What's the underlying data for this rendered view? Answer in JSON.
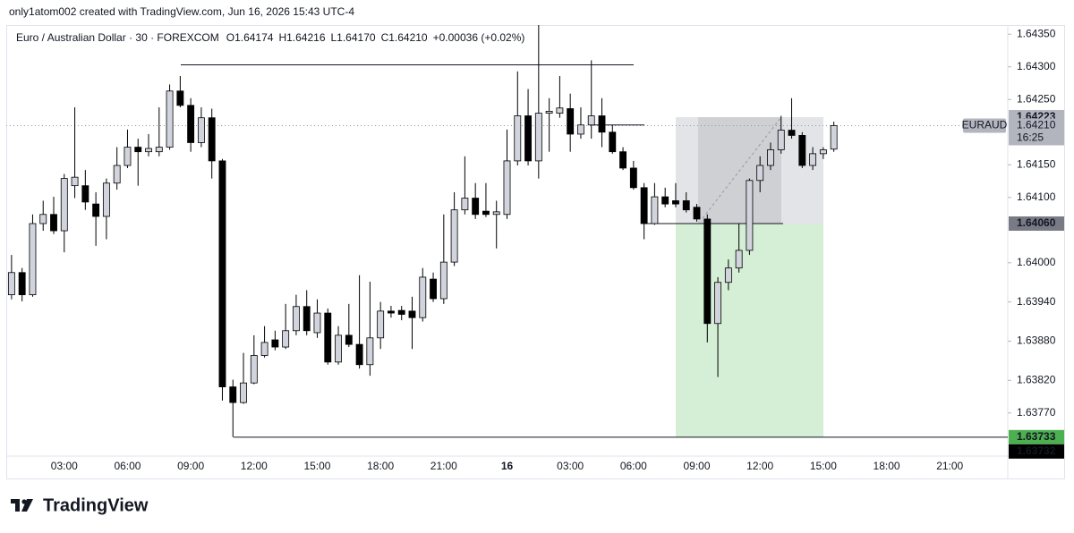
{
  "attribution": "only1atom002 created with TradingView.com, Jun 16, 2026 15:43 UTC-4",
  "brand": "TradingView",
  "chart_data": {
    "type": "candlestick",
    "legend": {
      "symbol": "Euro / Australian Dollar · 30 · FOREXCOM",
      "ohlc": [
        "O1.64174",
        "H1.64216",
        "L1.64170",
        "C1.64210"
      ],
      "change": "+0.00036 (+0.02%)"
    },
    "categories": [
      null,
      null,
      null,
      null,
      null,
      "03:00",
      null,
      null,
      null,
      null,
      null,
      "06:00",
      null,
      null,
      null,
      null,
      null,
      "09:00",
      null,
      null,
      null,
      null,
      null,
      "12:00",
      null,
      null,
      null,
      null,
      null,
      "15:00",
      null,
      null,
      null,
      null,
      null,
      "18:00",
      null,
      null,
      null,
      null,
      null,
      "21:00",
      null,
      null,
      null,
      null,
      null,
      "16",
      null,
      null,
      null,
      null,
      null,
      "03:00",
      null,
      null,
      null,
      null,
      null,
      "06:00",
      null,
      null,
      null,
      null,
      null,
      "09:00",
      null,
      null,
      null,
      null,
      null,
      "12:00",
      null,
      null,
      null,
      null,
      null,
      "15:00",
      null,
      null,
      null,
      null,
      null,
      "18:00",
      null,
      null,
      null,
      null,
      null,
      "21:00",
      null,
      null,
      null,
      null,
      null
    ],
    "open": [
      1.63951,
      1.63985,
      1.63951,
      1.6406,
      1.64074,
      1.64049,
      1.64118,
      1.64118,
      1.6409,
      1.64071,
      1.64122,
      1.64149,
      1.64177,
      1.6417,
      1.6417,
      1.64177,
      1.64263,
      1.64241,
      1.64184,
      1.64222,
      1.64156,
      1.6381,
      1.63786,
      1.63816,
      1.63858,
      1.63882,
      1.63871,
      1.63896,
      1.63933,
      1.63893,
      1.63923,
      1.63848,
      1.63889,
      1.63875,
      1.63844,
      1.63885,
      1.63926,
      1.63927,
      1.63926,
      1.63916,
      1.63975,
      1.63945,
      1.64001,
      1.64081,
      1.64099,
      1.64079,
      1.64074,
      1.64074,
      1.64156,
      1.64225,
      1.64156,
      1.64229,
      1.64229,
      1.64236,
      1.64197,
      1.64211,
      1.64225,
      1.642,
      1.6417,
      1.64145,
      1.64115,
      1.6406,
      1.64101,
      1.64095,
      1.64095,
      1.64085,
      1.64067,
      1.63907,
      1.6397,
      1.63992,
      1.64019,
      1.64126,
      1.64149,
      1.64173,
      1.64203,
      1.64195,
      1.64149,
      1.64167,
      1.64174,
      null,
      null,
      null,
      null,
      null,
      null,
      null,
      null,
      null,
      null,
      null,
      null,
      null,
      null,
      null,
      null
    ],
    "high": [
      1.64012,
      1.63992,
      1.64074,
      1.64095,
      1.64101,
      1.64136,
      1.64238,
      1.64142,
      1.64108,
      1.64129,
      1.64177,
      1.64204,
      1.6419,
      1.64197,
      1.64238,
      1.64273,
      1.64286,
      1.64252,
      1.64238,
      1.64236,
      1.64159,
      1.63821,
      1.63862,
      1.63889,
      1.63903,
      1.63896,
      1.63937,
      1.63951,
      1.63958,
      1.63944,
      1.6393,
      1.63903,
      1.63937,
      1.63981,
      1.63971,
      1.6394,
      1.63934,
      1.63934,
      1.63948,
      1.63992,
      1.63985,
      1.64074,
      1.64108,
      1.64163,
      1.64122,
      1.64122,
      1.64095,
      1.64204,
      1.64293,
      1.64266,
      1.64364,
      1.64252,
      1.64286,
      1.64259,
      1.64238,
      1.6431,
      1.64252,
      1.64211,
      1.64177,
      1.64156,
      1.64122,
      1.64122,
      1.64115,
      1.64122,
      1.64108,
      1.6409,
      1.64074,
      1.63978,
      1.64005,
      1.6406,
      1.64129,
      1.64163,
      1.64184,
      1.64225,
      1.64252,
      1.642,
      1.64177,
      1.64177,
      1.64216,
      null,
      null,
      null,
      null,
      null,
      null,
      null,
      null,
      null,
      null,
      null,
      null,
      null,
      null,
      null,
      null
    ],
    "low": [
      1.63944,
      1.63941,
      1.63948,
      1.64049,
      1.64044,
      1.64016,
      1.64099,
      1.64081,
      1.64026,
      1.64036,
      1.64112,
      1.64145,
      1.64118,
      1.64163,
      1.64163,
      1.64173,
      1.64238,
      1.6417,
      1.64177,
      1.64129,
      1.63789,
      1.63733,
      1.63784,
      1.63814,
      1.63855,
      1.63866,
      1.63868,
      1.63889,
      1.63889,
      1.63885,
      1.63844,
      1.63844,
      1.63871,
      1.63838,
      1.63827,
      1.63868,
      1.63916,
      1.63912,
      1.63868,
      1.6391,
      1.6394,
      1.63937,
      1.63995,
      1.64074,
      1.64067,
      1.6407,
      1.64022,
      1.64067,
      1.64149,
      1.64149,
      1.64129,
      1.6417,
      1.64222,
      1.6417,
      1.6419,
      1.6419,
      1.64177,
      1.64167,
      1.64142,
      1.64112,
      1.64036,
      1.64058,
      1.64085,
      1.64085,
      1.64077,
      1.64063,
      1.63878,
      1.63825,
      1.63958,
      1.63985,
      1.64012,
      1.64108,
      1.64142,
      1.64167,
      1.6419,
      1.64145,
      1.64142,
      1.64159,
      1.6417,
      null,
      null,
      null,
      null,
      null,
      null,
      null,
      null,
      null,
      null,
      null,
      null,
      null,
      null,
      null,
      null
    ],
    "close": [
      1.63985,
      1.63951,
      1.6406,
      1.64074,
      1.64049,
      1.64129,
      1.64131,
      1.64093,
      1.64071,
      1.64122,
      1.64149,
      1.64177,
      1.6417,
      1.64175,
      1.64177,
      1.64263,
      1.64241,
      1.64184,
      1.64222,
      1.64156,
      1.6381,
      1.63786,
      1.63816,
      1.63858,
      1.63878,
      1.63871,
      1.63896,
      1.63933,
      1.63896,
      1.63923,
      1.63848,
      1.63889,
      1.63875,
      1.63844,
      1.63885,
      1.63926,
      1.63923,
      1.63921,
      1.63916,
      1.63978,
      1.63945,
      1.64001,
      1.64081,
      1.64099,
      1.64074,
      1.64074,
      1.64078,
      1.64156,
      1.64225,
      1.64156,
      1.64229,
      1.64232,
      1.64237,
      1.64197,
      1.64211,
      1.64225,
      1.642,
      1.6417,
      1.64145,
      1.64115,
      1.6406,
      1.64101,
      1.6409,
      1.6409,
      1.64081,
      1.64067,
      1.63907,
      1.6397,
      1.63992,
      1.64019,
      1.64126,
      1.64149,
      1.64173,
      1.64203,
      1.64195,
      1.64149,
      1.64167,
      1.64173,
      1.6421,
      null,
      null,
      null,
      null,
      null,
      null,
      null,
      null,
      null,
      null,
      null,
      null,
      null,
      null,
      null,
      null
    ],
    "colors": {
      "up": "#d1d4dc",
      "down": "#000000",
      "border": "#000000"
    },
    "ylim": [
      1.63704,
      1.64364
    ],
    "yticks": [
      {
        "value": 1.6435,
        "label": "1.64350"
      },
      {
        "value": 1.643,
        "label": "1.64300"
      },
      {
        "value": 1.6425,
        "label": "1.64250"
      },
      {
        "value": 1.6415,
        "label": "1.64150"
      },
      {
        "value": 1.641,
        "label": "1.64100"
      },
      {
        "value": 1.64,
        "label": "1.64000"
      },
      {
        "value": 1.6394,
        "label": "1.63940"
      },
      {
        "value": 1.6388,
        "label": "1.63880"
      },
      {
        "value": 1.6382,
        "label": "1.63820"
      },
      {
        "value": 1.6377,
        "label": "1.63770"
      }
    ],
    "grid": false,
    "levels": [
      1.64303,
      1.64211,
      1.6406,
      1.63733
    ],
    "position": {
      "top": 1.64223,
      "entry": 1.6406,
      "bottom": 1.63733
    },
    "last_price": {
      "symbol": "EURAUD",
      "value": 1.6421,
      "label": "1.64210",
      "countdown": "16:25",
      "color": "#b2b5be"
    },
    "price_badges": [
      {
        "value": 1.64223,
        "label": "1.64223",
        "color": "#b2b5be",
        "text_color": "#131722"
      },
      {
        "value": 1.6406,
        "label": "1.64060",
        "color": "#787b86",
        "text_color": "#ffffff"
      },
      {
        "value": 1.63733,
        "label": "1.63733",
        "color": "#4caf50",
        "text_color": "#ffffff"
      },
      {
        "value": 1.63732,
        "label": "1.63732",
        "color": "#000000",
        "text_color": "#ffffff"
      }
    ]
  }
}
